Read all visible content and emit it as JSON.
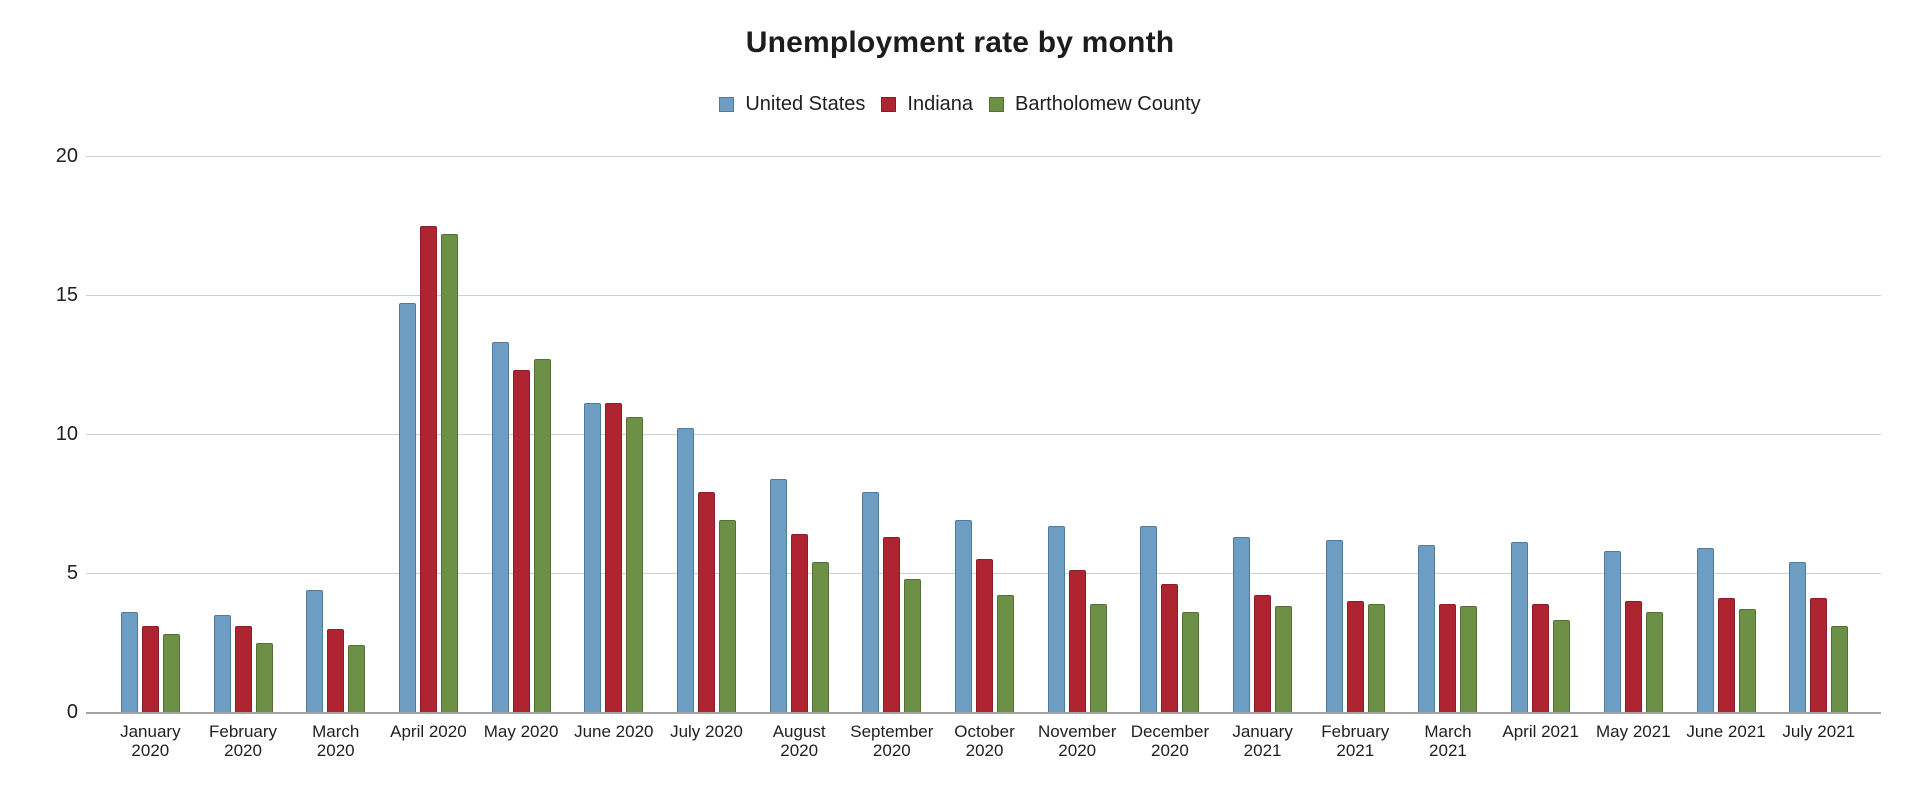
{
  "title": "Unemployment rate by month",
  "colors": {
    "background": "#ffffff",
    "grid_line": "#cfcfcf",
    "axis_line": "#a3a3a3",
    "text": "#1f1f1f",
    "series_blue": "#6d9dc3",
    "series_red": "#ae2531",
    "series_green": "#6d9047"
  },
  "chart_data": {
    "type": "bar",
    "title": "Unemployment rate by month",
    "xlabel": "",
    "ylabel": "",
    "ylim": [
      0,
      20
    ],
    "yticks": [
      "0",
      "5",
      "10",
      "15",
      "20"
    ],
    "grid": true,
    "legend_position": "top",
    "categories": [
      "January 2020",
      "February 2020",
      "March 2020",
      "April 2020",
      "May 2020",
      "June 2020",
      "July 2020",
      "August 2020",
      "September 2020",
      "October 2020",
      "November 2020",
      "December 2020",
      "January 2021",
      "February 2021",
      "March 2021",
      "April 2021",
      "May 2021",
      "June 2021",
      "July 2021"
    ],
    "category_label_lines": [
      [
        "January",
        "2020"
      ],
      [
        "February",
        "2020"
      ],
      [
        "March",
        "2020"
      ],
      [
        "April 2020"
      ],
      [
        "May 2020"
      ],
      [
        "June 2020"
      ],
      [
        "July 2020"
      ],
      [
        "August",
        "2020"
      ],
      [
        "September",
        "2020"
      ],
      [
        "October",
        "2020"
      ],
      [
        "November",
        "2020"
      ],
      [
        "December",
        "2020"
      ],
      [
        "January",
        "2021"
      ],
      [
        "February",
        "2021"
      ],
      [
        "March",
        "2021"
      ],
      [
        "April 2021"
      ],
      [
        "May 2021"
      ],
      [
        "June 2021"
      ],
      [
        "July 2021"
      ]
    ],
    "series": [
      {
        "name": "United States",
        "color": "#6d9dc3",
        "border_color": "#4f7a9c",
        "values": [
          3.6,
          3.5,
          4.4,
          14.7,
          13.3,
          11.1,
          10.2,
          8.4,
          7.9,
          6.9,
          6.7,
          6.7,
          6.3,
          6.2,
          6.0,
          6.1,
          5.8,
          5.9,
          5.4
        ]
      },
      {
        "name": "Indiana",
        "color": "#ae2531",
        "border_color": "#8a1d27",
        "values": [
          3.1,
          3.1,
          3.0,
          17.5,
          12.3,
          11.1,
          7.9,
          6.4,
          6.3,
          5.5,
          5.1,
          4.6,
          4.2,
          4.0,
          3.9,
          3.9,
          4.0,
          4.1,
          4.1
        ]
      },
      {
        "name": "Bartholomew County",
        "color": "#6d9047",
        "border_color": "#566f37",
        "values": [
          2.8,
          2.5,
          2.4,
          17.2,
          12.7,
          10.6,
          6.9,
          5.4,
          4.8,
          4.2,
          3.9,
          3.6,
          3.8,
          3.9,
          3.8,
          3.3,
          3.6,
          3.7,
          3.1
        ]
      }
    ]
  }
}
